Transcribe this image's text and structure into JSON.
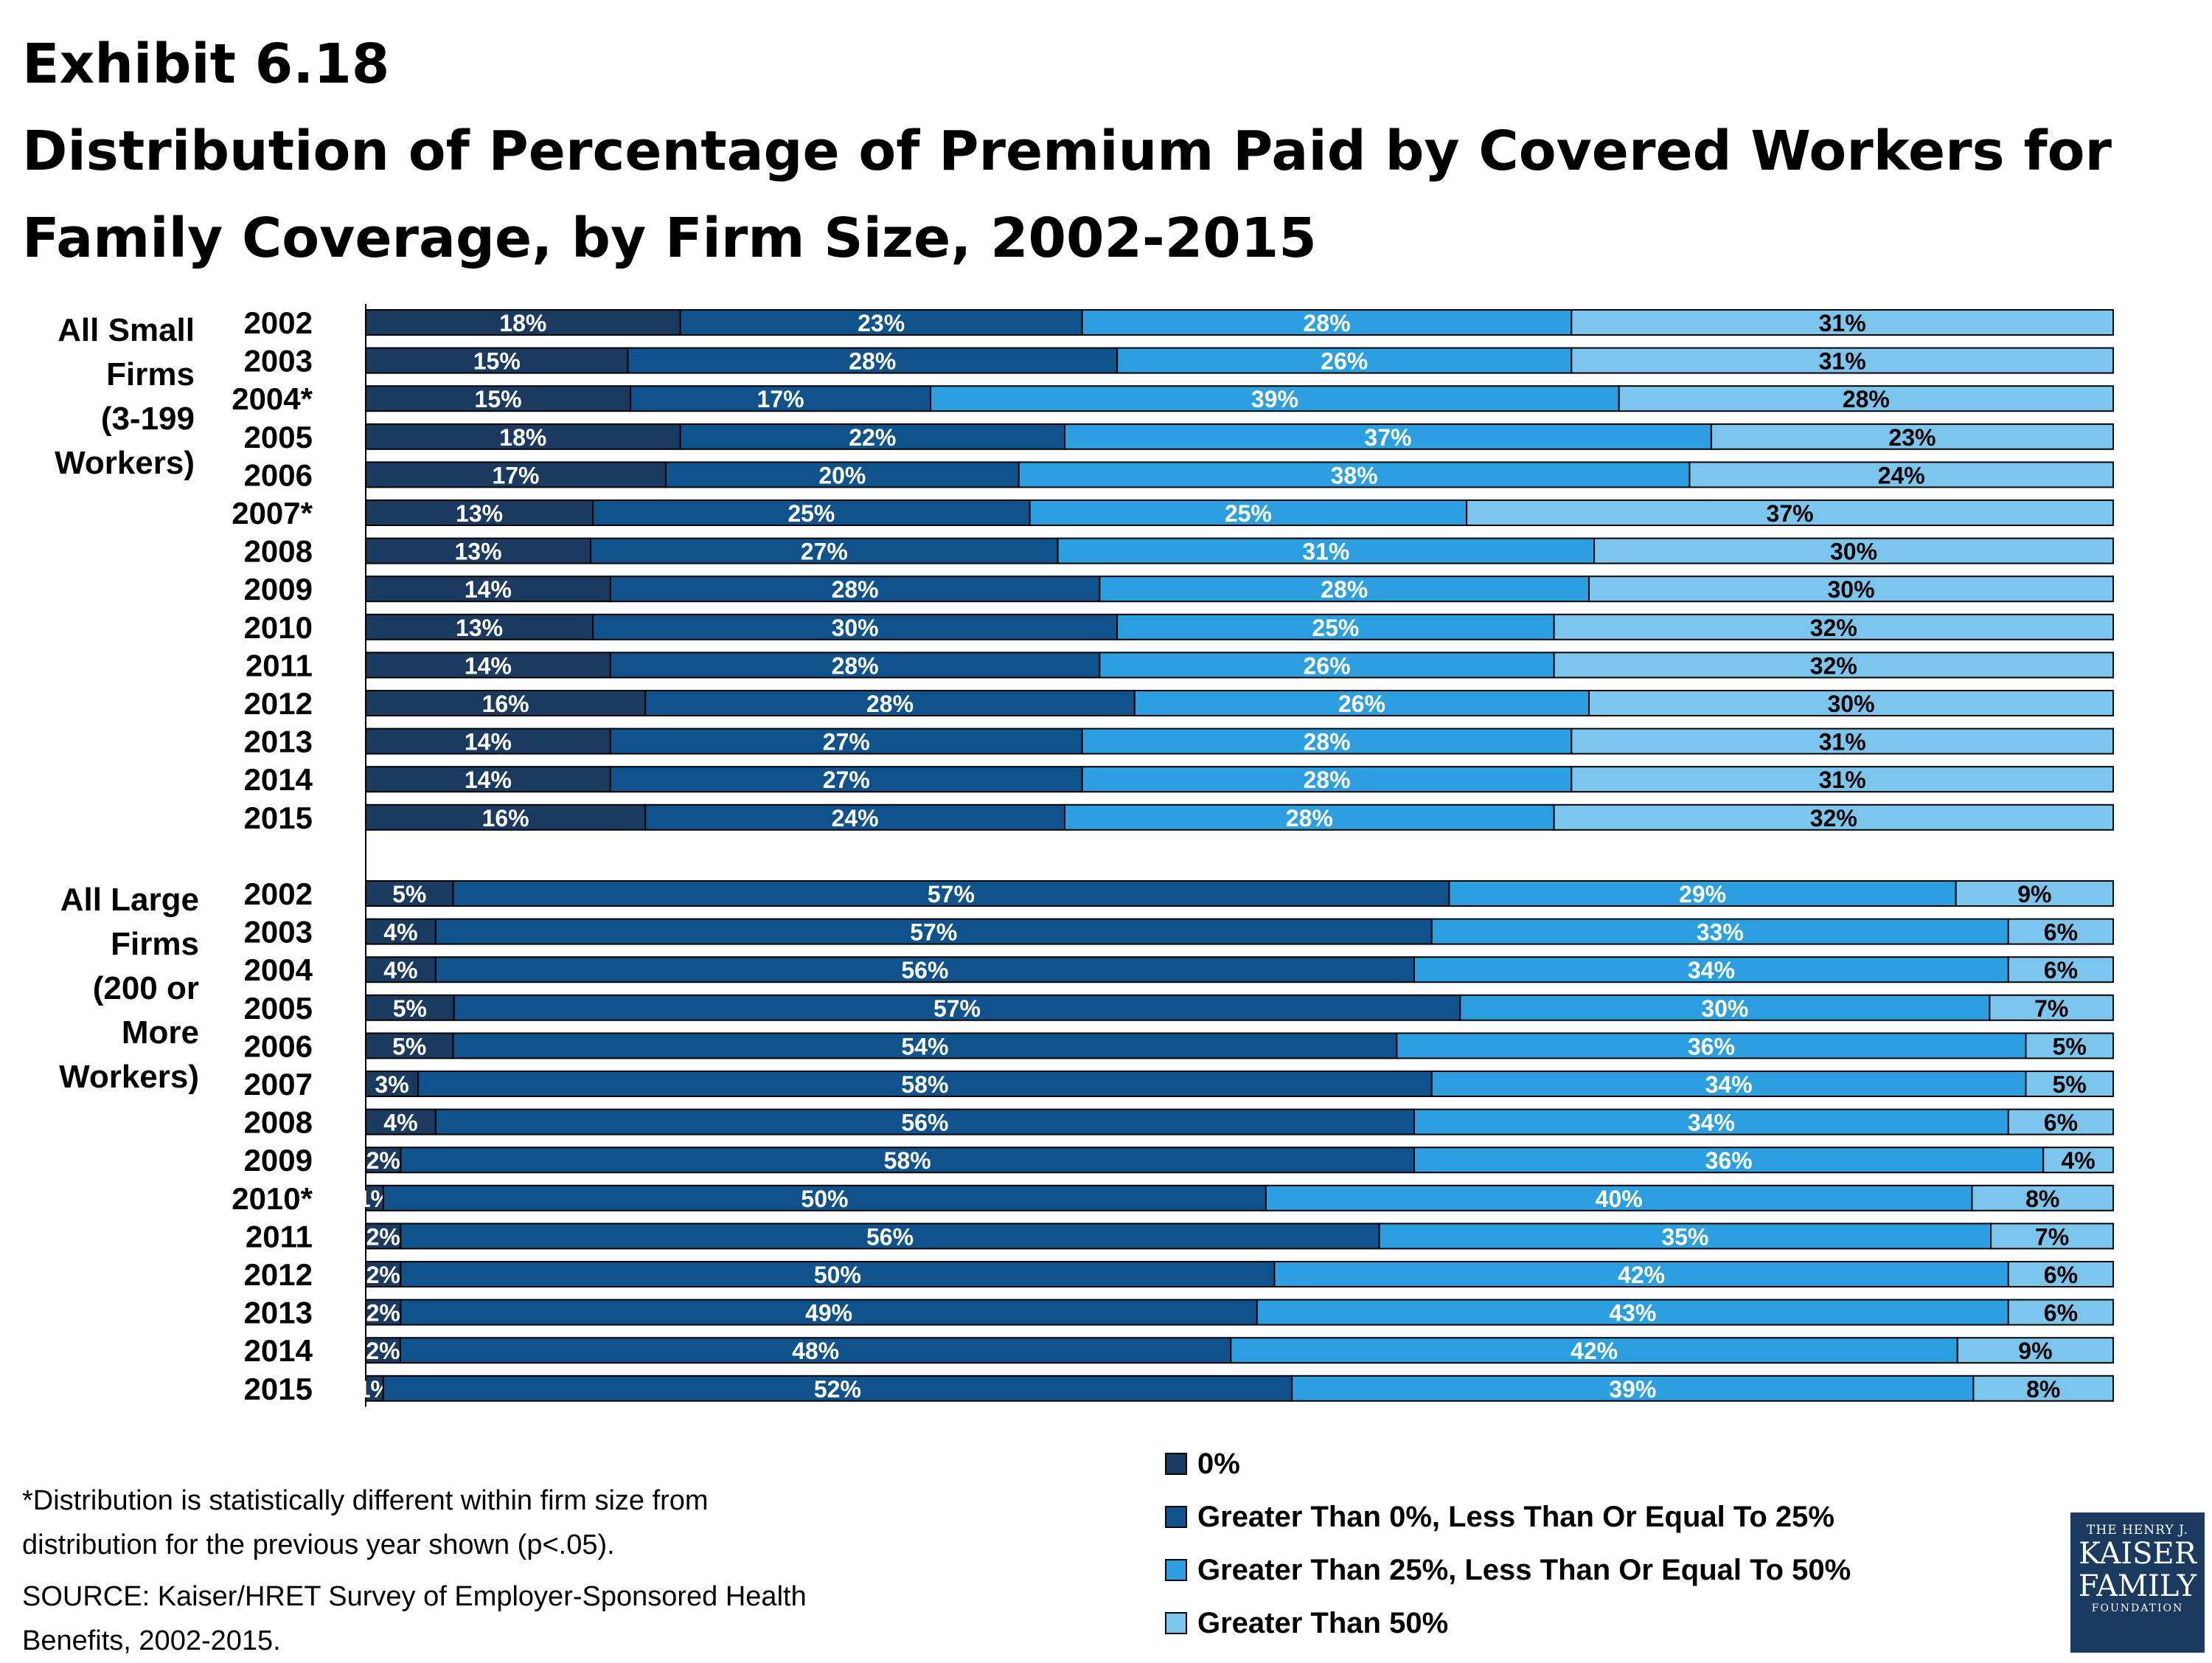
{
  "title": {
    "line1": "Exhibit 6.18",
    "line2": "Distribution of Percentage of Premium Paid by Covered Workers for",
    "line3": "Family Coverage, by Firm Size, 2002-2015"
  },
  "footnotes": {
    "stat_note_1": "*Distribution is statistically different within firm size from",
    "stat_note_2": "distribution for the previous year shown (p<.05).",
    "source_1": "SOURCE:  Kaiser/HRET Survey of Employer-Sponsored Health",
    "source_2": "Benefits, 2002-2015."
  },
  "logo": {
    "line1": "THE HENRY J.",
    "line2": "KAISER",
    "line3": "FAMILY",
    "line4": "FOUNDATION"
  },
  "colors": {
    "zero": "#1a3a5f",
    "to25": "#0f528c",
    "to50": "#2b9fe0",
    "over50": "#7cc6ee"
  },
  "chart_data": {
    "type": "bar",
    "orientation": "horizontal",
    "stacked": true,
    "xlim": [
      0,
      100
    ],
    "series_names": [
      "0%",
      "Greater Than 0%, Less Than Or Equal To 25%",
      "Greater Than 25%, Less Than Or Equal To 50%",
      "Greater Than 50%"
    ],
    "groups": [
      {
        "label_lines": [
          "All Small",
          "Firms",
          "(3-199",
          "Workers)"
        ],
        "rows": [
          {
            "year": "2002",
            "values": [
              18,
              23,
              28,
              31
            ]
          },
          {
            "year": "2003",
            "values": [
              15,
              28,
              26,
              31
            ]
          },
          {
            "year": "2004*",
            "values": [
              15,
              17,
              39,
              28
            ]
          },
          {
            "year": "2005",
            "values": [
              18,
              22,
              37,
              23
            ]
          },
          {
            "year": "2006",
            "values": [
              17,
              20,
              38,
              24
            ]
          },
          {
            "year": "2007*",
            "values": [
              13,
              25,
              25,
              37
            ]
          },
          {
            "year": "2008",
            "values": [
              13,
              27,
              31,
              30
            ]
          },
          {
            "year": "2009",
            "values": [
              14,
              28,
              28,
              30
            ]
          },
          {
            "year": "2010",
            "values": [
              13,
              30,
              25,
              32
            ]
          },
          {
            "year": "2011",
            "values": [
              14,
              28,
              26,
              32
            ]
          },
          {
            "year": "2012",
            "values": [
              16,
              28,
              26,
              30
            ]
          },
          {
            "year": "2013",
            "values": [
              14,
              27,
              28,
              31
            ]
          },
          {
            "year": "2014",
            "values": [
              14,
              27,
              28,
              31
            ]
          },
          {
            "year": "2015",
            "values": [
              16,
              24,
              28,
              32
            ]
          }
        ]
      },
      {
        "label_lines": [
          "All Large",
          "Firms",
          "(200 or",
          "More",
          "Workers)"
        ],
        "rows": [
          {
            "year": "2002",
            "values": [
              5,
              57,
              29,
              9
            ]
          },
          {
            "year": "2003",
            "values": [
              4,
              57,
              33,
              6
            ]
          },
          {
            "year": "2004",
            "values": [
              4,
              56,
              34,
              6
            ]
          },
          {
            "year": "2005",
            "values": [
              5,
              57,
              30,
              7
            ]
          },
          {
            "year": "2006",
            "values": [
              5,
              54,
              36,
              5
            ]
          },
          {
            "year": "2007",
            "values": [
              3,
              58,
              34,
              5
            ]
          },
          {
            "year": "2008",
            "values": [
              4,
              56,
              34,
              6
            ]
          },
          {
            "year": "2009",
            "values": [
              2,
              58,
              36,
              4
            ]
          },
          {
            "year": "2010*",
            "values": [
              1,
              50,
              40,
              8
            ]
          },
          {
            "year": "2011",
            "values": [
              2,
              56,
              35,
              7
            ]
          },
          {
            "year": "2012",
            "values": [
              2,
              50,
              42,
              6
            ]
          },
          {
            "year": "2013",
            "values": [
              2,
              49,
              43,
              6
            ]
          },
          {
            "year": "2014",
            "values": [
              2,
              48,
              42,
              9
            ]
          },
          {
            "year": "2015",
            "values": [
              1,
              52,
              39,
              8
            ]
          }
        ]
      }
    ]
  }
}
